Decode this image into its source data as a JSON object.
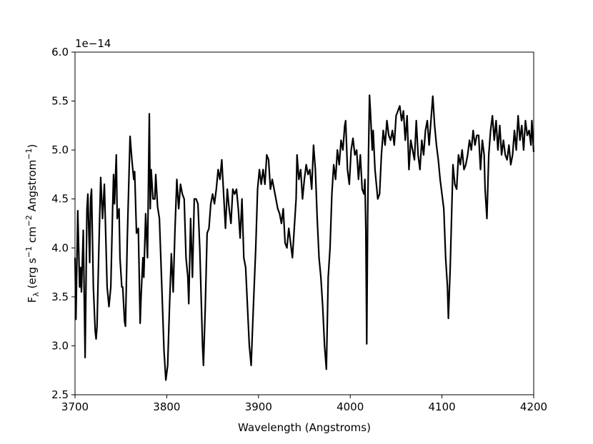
{
  "chart_data": {
    "type": "line",
    "xlabel": "Wavelength (Angstroms)",
    "ylabel": [
      "F",
      "λ",
      " (erg s",
      "−1",
      " cm",
      "−2",
      " Angstrom",
      "−1",
      ")"
    ],
    "offset_label": "1e−14",
    "color": "#000000",
    "xlim": [
      3700,
      4200
    ],
    "xticks": [
      3700,
      3800,
      3900,
      4000,
      4100,
      4200
    ],
    "ylim": [
      2.5,
      6.0
    ],
    "yticks": [
      2.5,
      {
        "value": 3,
        "label": "3.0"
      },
      3.5,
      {
        "value": 4,
        "label": "4.0"
      },
      4.5,
      {
        "value": 5,
        "label": "5.0"
      },
      5.5,
      {
        "value": 6,
        "label": "6.0"
      }
    ],
    "x": [
      3700,
      3701,
      3703,
      3705,
      3706,
      3707,
      3709,
      3711,
      3713,
      3714,
      3716,
      3717,
      3718,
      3720,
      3722,
      3723,
      3724,
      3726,
      3728,
      3730,
      3732,
      3733,
      3735,
      3737,
      3739,
      3741,
      3742,
      3743,
      3745,
      3746,
      3748,
      3749,
      3751,
      3752,
      3754,
      3755,
      3757,
      3759,
      3760,
      3762,
      3764,
      3765,
      3767,
      3769,
      3771,
      3772,
      3774,
      3775,
      3777,
      3779,
      3781,
      3782,
      3783,
      3785,
      3787,
      3788,
      3790,
      3792,
      3795,
      3797,
      3799,
      3801,
      3803,
      3805,
      3807,
      3809,
      3811,
      3813,
      3815,
      3817,
      3819,
      3821,
      3823,
      3824,
      3826,
      3828,
      3830,
      3832,
      3834,
      3836,
      3839,
      3840,
      3842,
      3844,
      3846,
      3848,
      3850,
      3852,
      3854,
      3856,
      3858,
      3860,
      3862,
      3864,
      3866,
      3868,
      3870,
      3872,
      3874,
      3876,
      3878,
      3880,
      3882,
      3884,
      3886,
      3888,
      3890,
      3892,
      3894,
      3897,
      3899,
      3901,
      3903,
      3905,
      3907,
      3909,
      3911,
      3913,
      3915,
      3917,
      3919,
      3921,
      3923,
      3925,
      3927,
      3929,
      3931,
      3933,
      3935,
      3937,
      3939,
      3941,
      3942,
      3944,
      3946,
      3948,
      3950,
      3952,
      3954,
      3956,
      3958,
      3960,
      3962,
      3964,
      3966,
      3968,
      3970,
      3972,
      3974,
      3976,
      3978,
      3980,
      3982,
      3984,
      3986,
      3988,
      3990,
      3992,
      3994,
      3995,
      3997,
      3999,
      4001,
      4003,
      4005,
      4007,
      4009,
      4011,
      4013,
      4015,
      4016,
      4017,
      4018,
      4019,
      4020,
      4021,
      4022,
      4024,
      4025,
      4027,
      4029,
      4030,
      4032,
      4034,
      4036,
      4038,
      4040,
      4042,
      4044,
      4046,
      4048,
      4050,
      4052,
      4054,
      4056,
      4058,
      4060,
      4062,
      4064,
      4066,
      4068,
      4070,
      4072,
      4074,
      4076,
      4078,
      4080,
      4082,
      4084,
      4086,
      4090,
      4092,
      4094,
      4096,
      4098,
      4100,
      4102,
      4104,
      4106,
      4107,
      4109,
      4111,
      4112,
      4114,
      4116,
      4118,
      4120,
      4122,
      4124,
      4126,
      4128,
      4130,
      4132,
      4134,
      4136,
      4138,
      4140,
      4142,
      4144,
      4146,
      4147,
      4149,
      4151,
      4153,
      4155,
      4157,
      4159,
      4161,
      4163,
      4165,
      4167,
      4169,
      4171,
      4173,
      4175,
      4177,
      4179,
      4181,
      4183,
      4185,
      4187,
      4189,
      4191,
      4193,
      4195,
      4197,
      4198,
      4200
    ],
    "values": [
      3.9,
      3.27,
      4.38,
      3.6,
      3.8,
      3.55,
      4.18,
      2.88,
      4.4,
      4.55,
      3.85,
      4.5,
      4.6,
      3.6,
      3.15,
      3.07,
      3.2,
      4.0,
      4.72,
      4.3,
      4.65,
      4.3,
      3.6,
      3.4,
      3.6,
      4.4,
      4.75,
      4.45,
      4.95,
      4.3,
      4.4,
      3.9,
      3.6,
      3.6,
      3.25,
      3.2,
      4.1,
      4.8,
      5.14,
      4.9,
      4.7,
      4.78,
      4.15,
      4.2,
      3.23,
      3.5,
      3.9,
      3.7,
      4.35,
      3.9,
      5.37,
      4.4,
      4.8,
      4.5,
      4.5,
      4.75,
      4.42,
      4.3,
      3.5,
      2.95,
      2.65,
      2.8,
      3.4,
      3.94,
      3.55,
      4.2,
      4.7,
      4.4,
      4.65,
      4.55,
      4.5,
      3.9,
      3.7,
      3.43,
      4.3,
      3.7,
      4.5,
      4.5,
      4.45,
      4.0,
      3.0,
      2.8,
      3.4,
      4.15,
      4.2,
      4.45,
      4.55,
      4.45,
      4.6,
      4.8,
      4.7,
      4.9,
      4.55,
      4.2,
      4.6,
      4.4,
      4.25,
      4.6,
      4.55,
      4.6,
      4.4,
      4.1,
      4.5,
      3.9,
      3.8,
      3.4,
      3.0,
      2.8,
      3.3,
      4.0,
      4.6,
      4.8,
      4.65,
      4.8,
      4.65,
      4.95,
      4.9,
      4.6,
      4.7,
      4.6,
      4.5,
      4.4,
      4.35,
      4.25,
      4.4,
      4.05,
      4.0,
      4.2,
      4.05,
      3.9,
      4.2,
      4.5,
      4.95,
      4.7,
      4.8,
      4.5,
      4.7,
      4.85,
      4.75,
      4.8,
      4.6,
      5.05,
      4.8,
      4.3,
      3.9,
      3.7,
      3.4,
      3.0,
      2.76,
      3.7,
      4.0,
      4.55,
      4.85,
      4.7,
      5.0,
      4.85,
      5.1,
      5.0,
      5.25,
      5.3,
      4.8,
      4.65,
      5.0,
      5.12,
      4.95,
      5.0,
      4.7,
      4.95,
      4.6,
      4.55,
      4.7,
      4.2,
      3.02,
      4.3,
      5.0,
      5.56,
      5.4,
      5.0,
      5.2,
      4.8,
      4.6,
      4.5,
      4.55,
      4.95,
      5.2,
      5.05,
      5.3,
      5.15,
      5.1,
      5.2,
      5.05,
      5.35,
      5.4,
      5.45,
      5.3,
      5.4,
      5.1,
      5.35,
      4.8,
      5.1,
      5.0,
      4.9,
      5.3,
      4.95,
      4.8,
      5.1,
      4.95,
      5.2,
      5.3,
      5.05,
      5.55,
      5.25,
      5.05,
      4.9,
      4.7,
      4.55,
      4.4,
      3.9,
      3.6,
      3.28,
      3.8,
      4.5,
      4.85,
      4.65,
      4.6,
      4.95,
      4.85,
      5.0,
      4.8,
      4.85,
      4.95,
      5.1,
      5.0,
      5.2,
      5.05,
      5.15,
      5.15,
      4.8,
      5.1,
      4.95,
      4.6,
      4.3,
      4.95,
      5.2,
      5.35,
      5.1,
      5.3,
      5.0,
      5.25,
      4.95,
      5.1,
      4.95,
      4.9,
      5.05,
      4.85,
      4.95,
      5.2,
      5.0,
      5.35,
      5.1,
      5.25,
      5.0,
      5.3,
      5.15,
      5.2,
      5.05,
      5.3,
      4.98
    ]
  }
}
